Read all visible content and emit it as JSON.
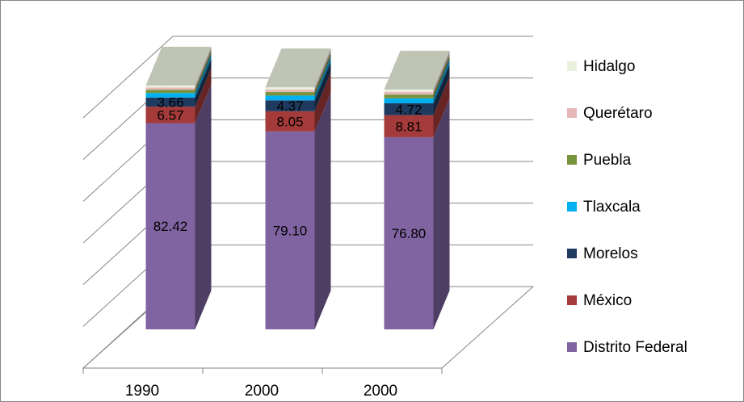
{
  "chart_data": {
    "type": "bar",
    "stacked": true,
    "three_d": true,
    "categories": [
      "1990",
      "2000",
      "2000"
    ],
    "series": [
      {
        "name": "Distrito Federal",
        "values": [
          82.42,
          79.1,
          76.8
        ],
        "labels": [
          "82.42",
          "79.10",
          "76.80"
        ],
        "color": "#8064A2"
      },
      {
        "name": "México",
        "values": [
          6.57,
          8.05,
          8.81
        ],
        "labels": [
          "6.57",
          "8.05",
          "8.81"
        ],
        "color": "#A43B3A"
      },
      {
        "name": "Morelos",
        "values": [
          3.66,
          4.37,
          4.72
        ],
        "labels": [
          "3.66",
          "4.37",
          "4.72"
        ],
        "color": "#1F3A5F"
      },
      {
        "name": "Tlaxcala",
        "values": [
          1.8,
          1.9,
          2.0
        ],
        "color": "#00B0F0"
      },
      {
        "name": "Puebla",
        "values": [
          1.3,
          1.4,
          1.5
        ],
        "color": "#77933C"
      },
      {
        "name": "Querétaro",
        "values": [
          0.9,
          1.0,
          1.1
        ],
        "color": "#E6B9B8"
      },
      {
        "name": "Hidalgo",
        "values": [
          0.8,
          0.9,
          0.9
        ],
        "color": "#EBF1DE"
      }
    ],
    "ylim": [
      0,
      100
    ],
    "grid": true,
    "legend_position": "right",
    "legend_order": [
      "Hidalgo",
      "Querétaro",
      "Puebla",
      "Tlaxcala",
      "Morelos",
      "México",
      "Distrito Federal"
    ],
    "title": "",
    "xlabel": "",
    "ylabel": ""
  }
}
